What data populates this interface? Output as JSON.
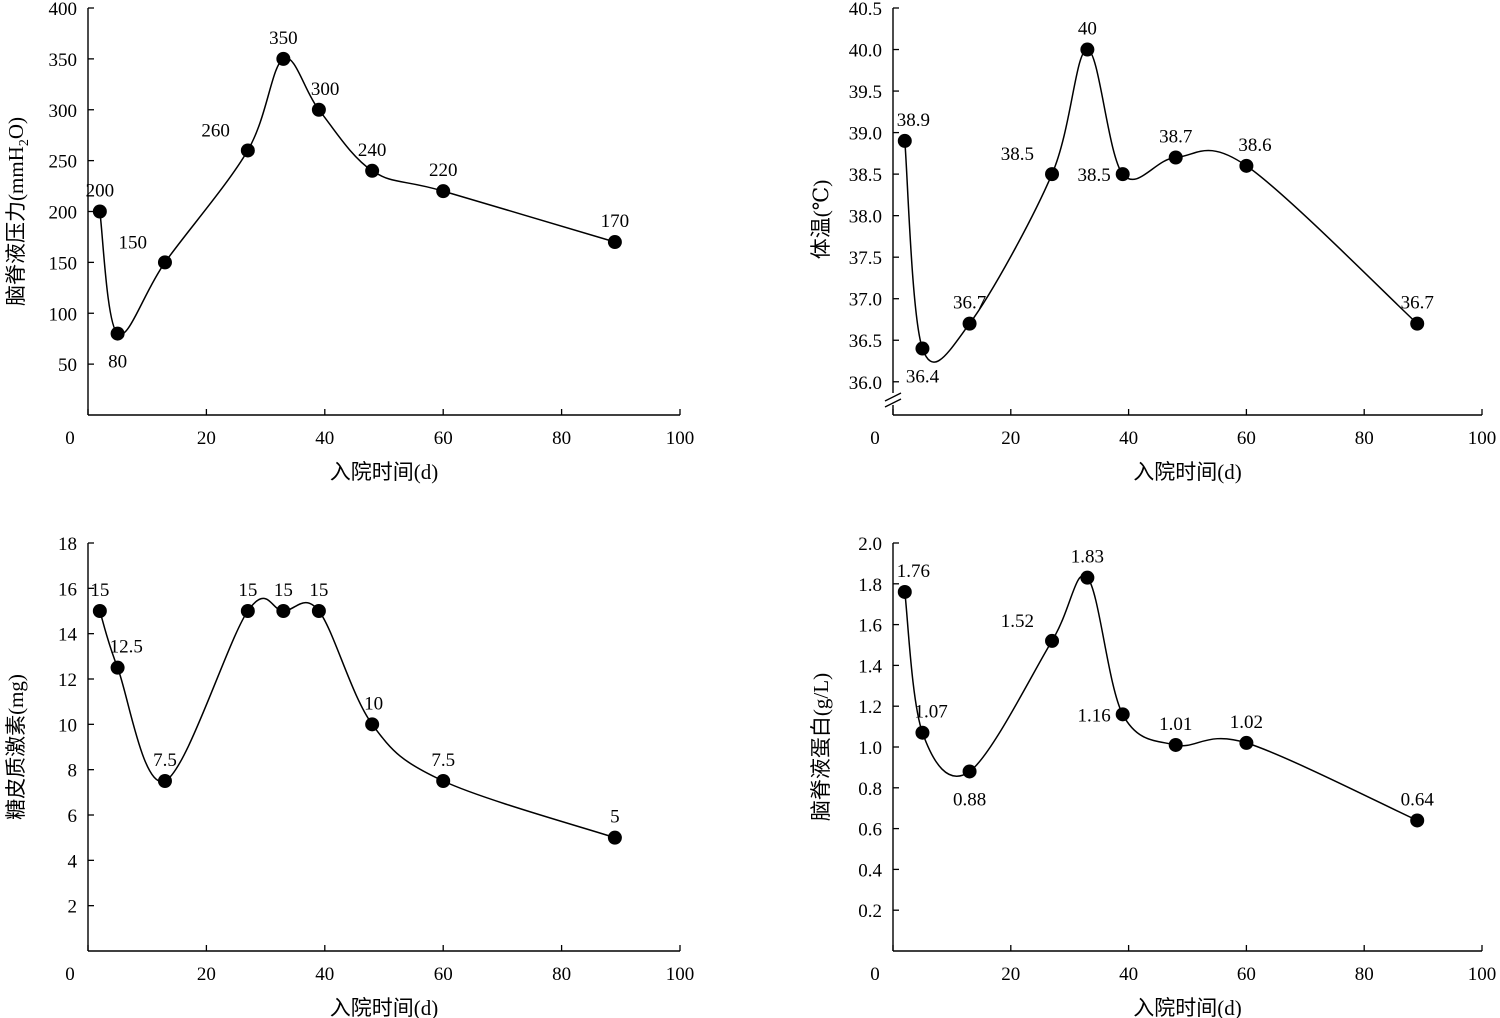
{
  "chart_data": [
    {
      "type": "line",
      "xlabel": "入院时间(d)",
      "ylabel": "脑脊液压力(mmH2O)",
      "ylabel_main": "脑脊液压力(mmH",
      "ylabel_sub": "2",
      "ylabel_end": "O)",
      "xlim": [
        0,
        100
      ],
      "ylim": [
        0,
        400
      ],
      "x_ticks": [
        0,
        20,
        40,
        60,
        80,
        100
      ],
      "y_ticks": [
        50,
        100,
        150,
        200,
        250,
        300,
        350,
        400
      ],
      "x_tick_labels": [
        "0",
        "20",
        "40",
        "60",
        "80",
        "100"
      ],
      "y_tick_labels": [
        "50",
        "100",
        "150",
        "200",
        "250",
        "300",
        "350",
        "400"
      ],
      "axis_break": false,
      "x": [
        2,
        5,
        13,
        27,
        33,
        39,
        48,
        60,
        89
      ],
      "y": [
        200,
        80,
        150,
        260,
        350,
        300,
        240,
        220,
        170
      ],
      "labels": [
        "200",
        "80",
        "150",
        "260",
        "350",
        "300",
        "240",
        "220",
        "170"
      ],
      "label_pos": [
        "above",
        "below",
        "above-left",
        "above-left",
        "above",
        "above-right",
        "above",
        "above",
        "above"
      ]
    },
    {
      "type": "line",
      "xlabel": "入院时间(d)",
      "ylabel": "体温(℃)",
      "xlim": [
        0,
        100
      ],
      "ylim": [
        35.6,
        40.5
      ],
      "x_ticks": [
        0,
        20,
        40,
        60,
        80,
        100
      ],
      "y_ticks": [
        36.0,
        36.5,
        37.0,
        37.5,
        38.0,
        38.5,
        39.0,
        39.5,
        40.0,
        40.5
      ],
      "x_tick_labels": [
        "0",
        "20",
        "40",
        "60",
        "80",
        "100"
      ],
      "y_tick_labels": [
        "36.0",
        "36.5",
        "37.0",
        "37.5",
        "38.0",
        "38.5",
        "39.0",
        "39.5",
        "40.0",
        "40.5"
      ],
      "axis_break": true,
      "x": [
        2,
        5,
        13,
        27,
        33,
        39,
        48,
        60,
        89
      ],
      "y": [
        38.9,
        36.4,
        36.7,
        38.5,
        40.0,
        38.5,
        38.7,
        38.6,
        36.7
      ],
      "labels": [
        "38.9",
        "36.4",
        "36.7",
        "38.5",
        "40",
        "38.5",
        "38.7",
        "38.6",
        "36.7"
      ],
      "label_pos": [
        "above-right",
        "below",
        "above",
        "above-left",
        "above",
        "left",
        "above",
        "above-right",
        "above"
      ]
    },
    {
      "type": "line",
      "xlabel": "入院时间(d)",
      "ylabel": "糖皮质激素(mg)",
      "xlim": [
        0,
        100
      ],
      "ylim": [
        0,
        18
      ],
      "x_ticks": [
        0,
        20,
        40,
        60,
        80,
        100
      ],
      "y_ticks": [
        2,
        4,
        6,
        8,
        10,
        12,
        14,
        16,
        18
      ],
      "x_tick_labels": [
        "0",
        "20",
        "40",
        "60",
        "80",
        "100"
      ],
      "y_tick_labels": [
        "2",
        "4",
        "6",
        "8",
        "10",
        "12",
        "14",
        "16",
        "18"
      ],
      "axis_break": false,
      "x": [
        2,
        5,
        13,
        27,
        33,
        39,
        48,
        60,
        89
      ],
      "y": [
        15,
        12.5,
        7.5,
        15,
        15,
        15,
        10,
        7.5,
        5
      ],
      "labels": [
        "15",
        "12.5",
        "7.5",
        "15",
        "15",
        "15",
        "10",
        "7.5",
        "5"
      ],
      "label_pos": [
        "above",
        "above-right",
        "above",
        "above",
        "above",
        "above",
        "above-right",
        "above",
        "above"
      ]
    },
    {
      "type": "line",
      "xlabel": "入院时间(d)",
      "ylabel": "脑脊液蛋白(g/L)",
      "xlim": [
        0,
        100
      ],
      "ylim": [
        0,
        2.0
      ],
      "x_ticks": [
        0,
        20,
        40,
        60,
        80,
        100
      ],
      "y_ticks": [
        0.2,
        0.4,
        0.6,
        0.8,
        1.0,
        1.2,
        1.4,
        1.6,
        1.8,
        2.0
      ],
      "x_tick_labels": [
        "0",
        "20",
        "40",
        "60",
        "80",
        "100"
      ],
      "y_tick_labels": [
        "0.2",
        "0.4",
        "0.6",
        "0.8",
        "1.0",
        "1.2",
        "1.4",
        "1.6",
        "1.8",
        "2.0"
      ],
      "axis_break": false,
      "x": [
        2,
        5,
        13,
        27,
        33,
        39,
        48,
        60,
        89
      ],
      "y": [
        1.76,
        1.07,
        0.88,
        1.52,
        1.83,
        1.16,
        1.01,
        1.02,
        0.64
      ],
      "labels": [
        "1.76",
        "1.07",
        "0.88",
        "1.52",
        "1.83",
        "1.16",
        "1.01",
        "1.02",
        "0.64"
      ],
      "label_pos": [
        "above-right",
        "above-right",
        "below",
        "above-left",
        "above",
        "left",
        "above",
        "above",
        "above"
      ]
    }
  ]
}
